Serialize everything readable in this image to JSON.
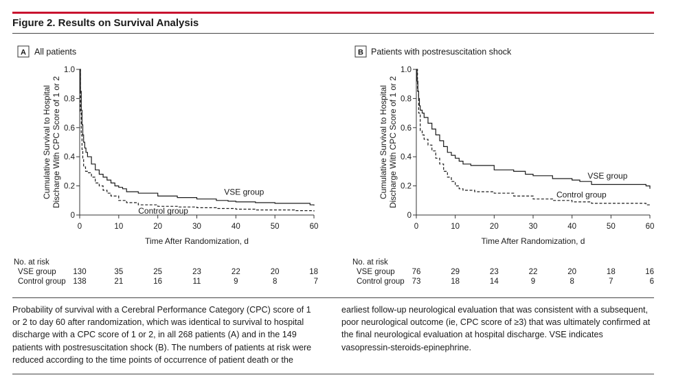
{
  "figure": {
    "title": "Figure 2. Results on Survival Analysis"
  },
  "chart_data": [
    {
      "type": "line",
      "panel_letter": "A",
      "title": "All patients",
      "xlabel": "Time After Randomization, d",
      "ylabel": [
        "Cumulative Survival to Hospital",
        "Discharge With CPC Score of 1 or 2"
      ],
      "xlim": [
        0,
        60
      ],
      "ylim": [
        0,
        1.0
      ],
      "xticks": [
        0,
        10,
        20,
        30,
        40,
        50,
        60
      ],
      "yticks": [
        0,
        0.2,
        0.4,
        0.6,
        0.8,
        1.0
      ],
      "ytick_labels": [
        "0",
        "0.2",
        "0.4",
        "0.6",
        "0.8",
        "1.0"
      ],
      "series": [
        {
          "name": "VSE group",
          "style": "solid",
          "color": "#1a1a1a",
          "x": [
            0,
            0.2,
            0.4,
            0.6,
            0.8,
            1,
            1.3,
            1.6,
            2,
            3,
            4,
            5,
            6,
            7,
            8,
            9,
            10,
            11,
            12,
            15,
            20,
            25,
            30,
            35,
            38,
            40,
            45,
            50,
            55,
            59,
            60
          ],
          "y": [
            1.0,
            0.85,
            0.72,
            0.62,
            0.55,
            0.5,
            0.46,
            0.43,
            0.4,
            0.35,
            0.31,
            0.28,
            0.26,
            0.24,
            0.22,
            0.2,
            0.19,
            0.18,
            0.16,
            0.15,
            0.13,
            0.12,
            0.11,
            0.1,
            0.095,
            0.09,
            0.085,
            0.08,
            0.08,
            0.07,
            0.065
          ]
        },
        {
          "name": "Control group",
          "style": "dashed",
          "color": "#1a1a1a",
          "x": [
            0,
            0.2,
            0.4,
            0.6,
            0.8,
            1,
            1.5,
            2,
            3,
            4,
            5,
            6,
            7,
            8,
            10,
            12,
            15,
            20,
            25,
            30,
            35,
            40,
            45,
            50,
            55,
            59,
            60
          ],
          "y": [
            1.0,
            0.7,
            0.55,
            0.45,
            0.38,
            0.33,
            0.3,
            0.29,
            0.26,
            0.22,
            0.2,
            0.17,
            0.15,
            0.13,
            0.1,
            0.085,
            0.07,
            0.06,
            0.055,
            0.05,
            0.045,
            0.04,
            0.035,
            0.035,
            0.03,
            0.03,
            0.025
          ]
        }
      ],
      "annotations": [
        {
          "text": "VSE group",
          "x": 37,
          "y": 0.14
        },
        {
          "text": "Control group",
          "x": 15,
          "y": 0.01
        }
      ],
      "risk_table": {
        "header": "No. at risk",
        "times": [
          0,
          10,
          20,
          30,
          40,
          50,
          60
        ],
        "rows": [
          {
            "label": "VSE group",
            "values": [
              "130",
              "35",
              "25",
              "23",
              "22",
              "20",
              "18"
            ]
          },
          {
            "label": "Control group",
            "values": [
              "138",
              "21",
              "16",
              "11",
              "9",
              "8",
              "7"
            ]
          }
        ]
      }
    },
    {
      "type": "line",
      "panel_letter": "B",
      "title": "Patients with postresuscitation shock",
      "xlabel": "Time After Randomization, d",
      "ylabel": [
        "Cumulative Survival to Hospital",
        "Discharge With CPC Score of 1 or 2"
      ],
      "xlim": [
        0,
        60
      ],
      "ylim": [
        0,
        1.0
      ],
      "xticks": [
        0,
        10,
        20,
        30,
        40,
        50,
        60
      ],
      "yticks": [
        0,
        0.2,
        0.4,
        0.6,
        0.8,
        1.0
      ],
      "ytick_labels": [
        "0",
        "0.2",
        "0.4",
        "0.6",
        "0.8",
        "1.0"
      ],
      "series": [
        {
          "name": "VSE group",
          "style": "solid",
          "color": "#1a1a1a",
          "x": [
            0,
            0.2,
            0.4,
            0.6,
            0.8,
            1,
            1.5,
            2,
            3,
            4,
            5,
            6,
            7,
            8,
            9,
            10,
            11,
            12,
            14,
            16,
            20,
            25,
            28,
            30,
            35,
            40,
            42,
            45,
            50,
            55,
            59,
            60
          ],
          "y": [
            1.0,
            0.92,
            0.85,
            0.8,
            0.75,
            0.72,
            0.7,
            0.67,
            0.63,
            0.59,
            0.55,
            0.51,
            0.47,
            0.43,
            0.41,
            0.39,
            0.37,
            0.35,
            0.34,
            0.34,
            0.31,
            0.3,
            0.28,
            0.27,
            0.25,
            0.24,
            0.23,
            0.21,
            0.21,
            0.21,
            0.2,
            0.18
          ]
        },
        {
          "name": "Control group",
          "style": "dashed",
          "color": "#1a1a1a",
          "x": [
            0,
            0.3,
            0.6,
            1,
            1.5,
            2,
            3,
            4,
            5,
            6,
            7,
            8,
            9,
            10,
            11,
            12,
            15,
            20,
            25,
            30,
            35,
            40,
            45,
            50,
            55,
            59,
            60
          ],
          "y": [
            1.0,
            0.85,
            0.7,
            0.58,
            0.55,
            0.52,
            0.48,
            0.44,
            0.39,
            0.35,
            0.3,
            0.26,
            0.23,
            0.2,
            0.18,
            0.17,
            0.16,
            0.15,
            0.13,
            0.11,
            0.1,
            0.09,
            0.08,
            0.08,
            0.08,
            0.07,
            0.06
          ]
        }
      ],
      "annotations": [
        {
          "text": "VSE group",
          "x": 44,
          "y": 0.25
        },
        {
          "text": "Control group",
          "x": 36,
          "y": 0.12
        }
      ],
      "risk_table": {
        "header": "No. at risk",
        "times": [
          0,
          10,
          20,
          30,
          40,
          50,
          60
        ],
        "rows": [
          {
            "label": "VSE group",
            "values": [
              "76",
              "29",
              "23",
              "22",
              "20",
              "18",
              "16"
            ]
          },
          {
            "label": "Control group",
            "values": [
              "73",
              "18",
              "14",
              "9",
              "8",
              "7",
              "6"
            ]
          }
        ]
      }
    }
  ],
  "caption": {
    "left": "Probability of survival with a Cerebral Performance Category (CPC) score of 1 or 2 to day 60 after randomization, which was identical to survival to hospital discharge with a CPC score of 1 or 2, in all 268 patients (A) and in the 149 patients with postresuscitation shock (B). The numbers of patients at risk were reduced according to the time points of occurrence of patient death or the",
    "right": "earliest follow-up neurological evaluation that was consistent with a subsequent, poor neurological outcome (ie, CPC score of ≥3) that was ultimately confirmed at the final neurological evaluation at hospital discharge. VSE indicates vasopressin-steroids-epinephrine."
  }
}
